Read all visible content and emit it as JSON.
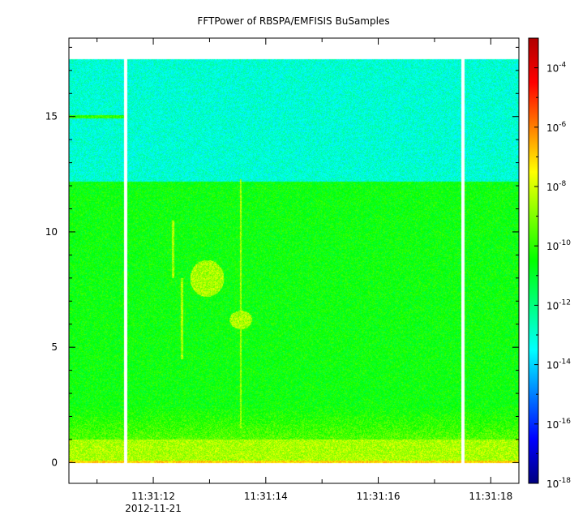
{
  "chart_data": {
    "type": "heatmap",
    "title": "FFTPower of RBSPA/EMFISIS  BuSamples",
    "xlabel": "",
    "ylabel": "",
    "x_time_range": [
      "2012-11-21 11:31:10.5",
      "2012-11-21 11:31:18.5"
    ],
    "x_ticks": [
      {
        "label": "11:31:12",
        "sublabel": "2012-11-21",
        "t": 12
      },
      {
        "label": "11:31:14",
        "sublabel": "",
        "t": 14
      },
      {
        "label": "11:31:16",
        "sublabel": "",
        "t": 16
      },
      {
        "label": "11:31:18",
        "sublabel": "",
        "t": 18
      }
    ],
    "y_range": [
      -0.9,
      18.4
    ],
    "y_ticks": [
      0,
      5,
      10,
      15
    ],
    "colorbar": {
      "scale": "log",
      "range": [
        1e-18,
        0.001
      ],
      "colormap": [
        "#00007f",
        "#0000ff",
        "#007fff",
        "#00ffff",
        "#00ff7f",
        "#00ff00",
        "#7fff00",
        "#ffff00",
        "#ff7f00",
        "#ff0000",
        "#b00000"
      ],
      "ticks": [
        {
          "base": "10",
          "exp": "-4",
          "v": -4
        },
        {
          "base": "10",
          "exp": "-6",
          "v": -6
        },
        {
          "base": "10",
          "exp": "-8",
          "v": -8
        },
        {
          "base": "10",
          "exp": "-10",
          "v": -10
        },
        {
          "base": "10",
          "exp": "-12",
          "v": -12
        },
        {
          "base": "10",
          "exp": "-14",
          "v": -14
        },
        {
          "base": "10",
          "exp": "-16",
          "v": -16
        },
        {
          "base": "10",
          "exp": "-18",
          "v": -18
        }
      ]
    },
    "data_gaps_time": [
      11.5,
      17.5
    ],
    "data_start_time": 10.5,
    "data_end_time": 18.5,
    "bands": [
      {
        "f_low": 12.2,
        "f_high": 17.5,
        "log_power": -13
      },
      {
        "f_low": 1.0,
        "f_high": 12.2,
        "log_power": -10.5
      },
      {
        "f_low": 0.1,
        "f_high": 1.0,
        "log_power": -8.5
      },
      {
        "f_low": 0.0,
        "f_high": 0.1,
        "log_power": -7
      }
    ],
    "features": [
      {
        "type": "line",
        "t": 13.55,
        "f_low": 1.5,
        "f_high": 12.3,
        "log_power": -8.5
      },
      {
        "type": "line",
        "t": 12.35,
        "f_low": 8.0,
        "f_high": 10.5,
        "log_power": -8.5
      },
      {
        "type": "line",
        "t": 12.5,
        "f_low": 4.5,
        "f_high": 8.0,
        "log_power": -8.5
      },
      {
        "type": "blob",
        "t": 12.95,
        "f": 8.0,
        "dt": 0.3,
        "df": 0.8,
        "log_power": -8.5
      },
      {
        "type": "blob",
        "t": 13.55,
        "f": 6.2,
        "dt": 0.2,
        "df": 0.4,
        "log_power": -8.5
      },
      {
        "type": "hline",
        "t_low": 10.5,
        "t_high": 11.5,
        "f": 15.0,
        "log_power": -10
      }
    ]
  }
}
